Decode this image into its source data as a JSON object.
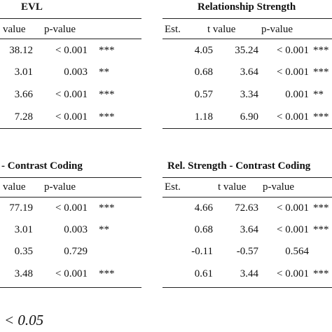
{
  "top": {
    "left_title": "EVL",
    "right_title": "Relationship Strength",
    "left_headers": [
      "value",
      "p-value"
    ],
    "right_headers": [
      "Est.",
      "t value",
      "p-value"
    ],
    "left_rows": [
      {
        "t": "38.12",
        "p": "< 0.001",
        "sig": "***"
      },
      {
        "t": "3.01",
        "p": "0.003",
        "sig": "**"
      },
      {
        "t": "3.66",
        "p": "< 0.001",
        "sig": "***"
      },
      {
        "t": "7.28",
        "p": "< 0.001",
        "sig": "***"
      }
    ],
    "right_rows": [
      {
        "est": "4.05",
        "t": "35.24",
        "p": "< 0.001",
        "sig": "***"
      },
      {
        "est": "0.68",
        "t": "3.64",
        "p": "< 0.001",
        "sig": "***"
      },
      {
        "est": "0.57",
        "t": "3.34",
        "p": "0.001",
        "sig": "**"
      },
      {
        "est": "1.18",
        "t": "6.90",
        "p": "< 0.001",
        "sig": "***"
      }
    ]
  },
  "bottom": {
    "left_title": "- Contrast Coding",
    "right_title": "Rel. Strength - Contrast Coding",
    "left_headers": [
      "value",
      "p-value"
    ],
    "right_headers": [
      "Est.",
      "t value",
      "p-value"
    ],
    "left_rows": [
      {
        "t": "77.19",
        "p": "< 0.001",
        "sig": "***"
      },
      {
        "t": "3.01",
        "p": "0.003",
        "sig": "**"
      },
      {
        "t": "0.35",
        "p": "0.729",
        "sig": ""
      },
      {
        "t": "3.48",
        "p": "< 0.001",
        "sig": "***"
      }
    ],
    "right_rows": [
      {
        "est": "4.66",
        "t": "72.63",
        "p": "< 0.001",
        "sig": "***"
      },
      {
        "est": "0.68",
        "t": "3.64",
        "p": "< 0.001",
        "sig": "***"
      },
      {
        "est": "-0.11",
        "t": "-0.57",
        "p": "0.564",
        "sig": ""
      },
      {
        "est": "0.61",
        "t": "3.44",
        "p": "< 0.001",
        "sig": "***"
      }
    ]
  },
  "footnote": "< 0.05"
}
